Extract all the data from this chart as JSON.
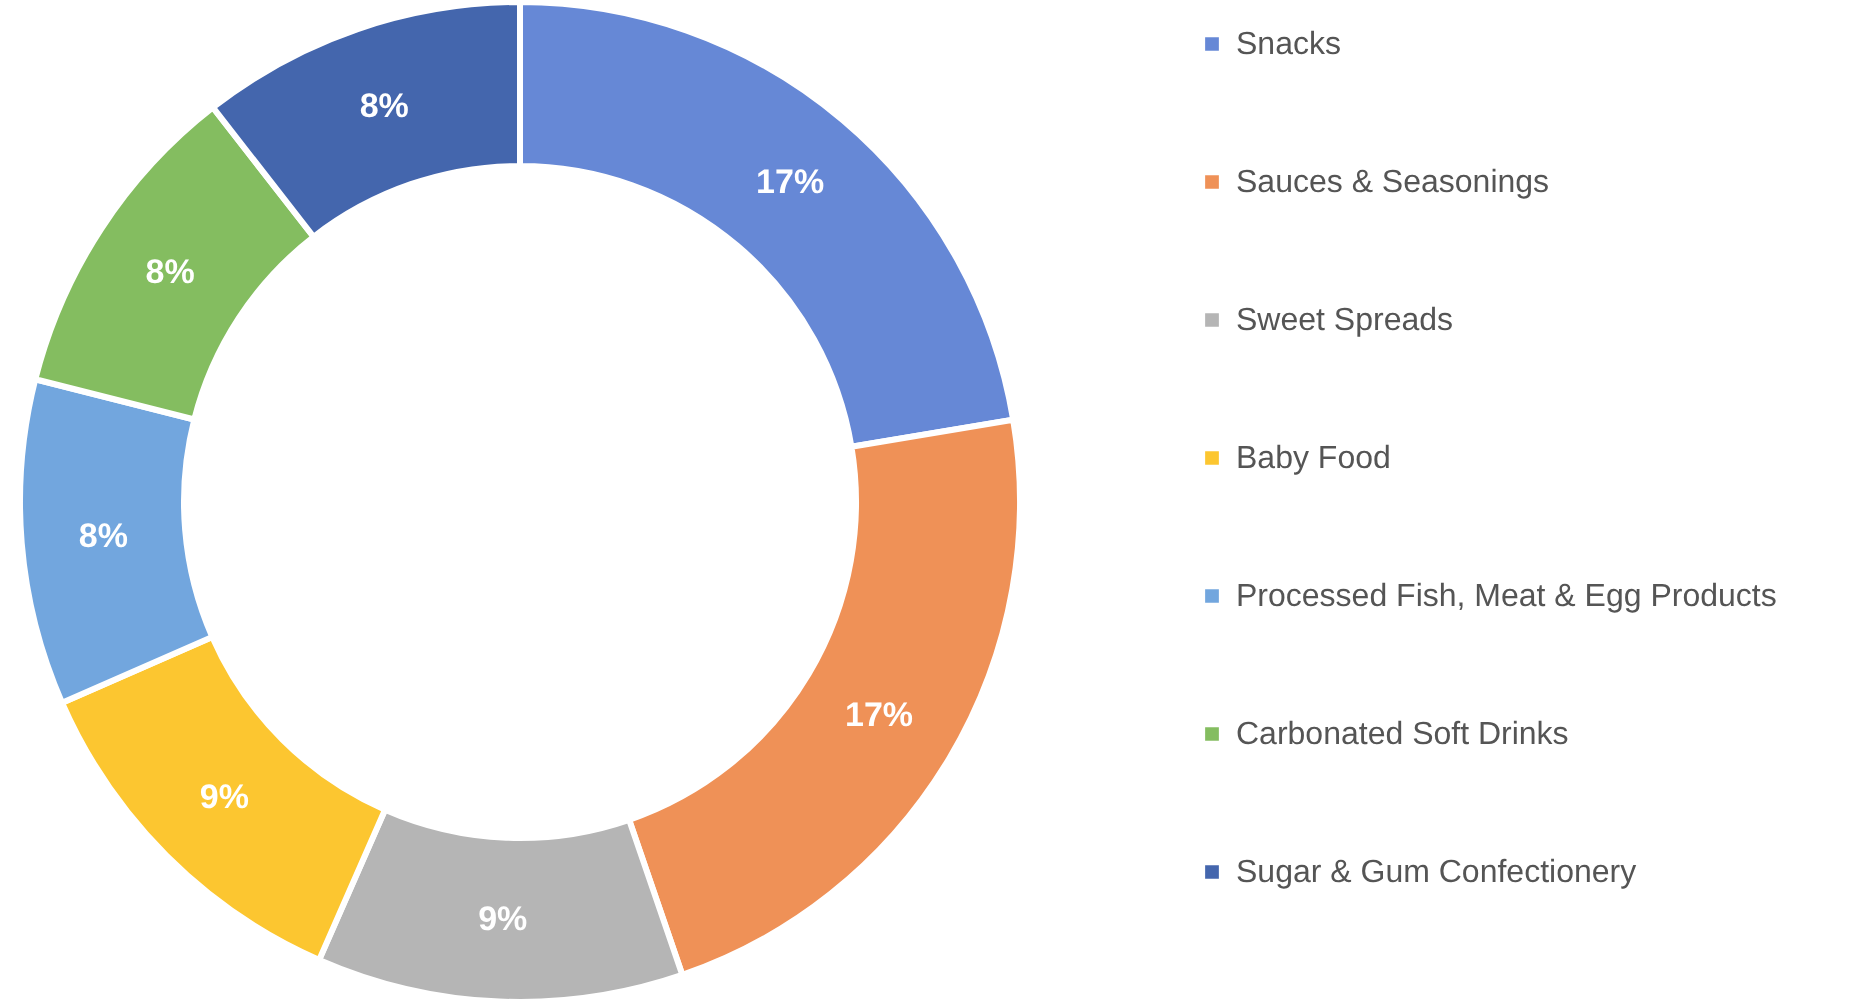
{
  "chart_data": {
    "type": "donut",
    "categories": [
      "Snacks",
      "Sauces & Seasonings",
      "Sweet Spreads",
      "Baby Food",
      "Processed Fish, Meat & Egg Products",
      "Carbonated Soft Drinks",
      "Sugar & Gum Confectionery"
    ],
    "values": [
      17,
      17,
      9,
      9,
      8,
      8,
      8
    ],
    "colors": [
      "#6688d6",
      "#ef9157",
      "#b5b5b5",
      "#fcc630",
      "#72a6de",
      "#84bd60",
      "#4466ad"
    ],
    "value_labels": [
      "17%",
      "17%",
      "9%",
      "9%",
      "8%",
      "8%",
      "8%"
    ],
    "legend": "right"
  }
}
